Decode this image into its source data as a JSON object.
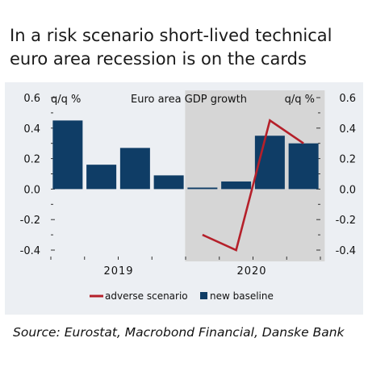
{
  "title": "In a risk scenario short-lived technical euro area recession is on the cards",
  "source": "Source: Eurostat, Macrobond Financial, Danske Bank",
  "colors": {
    "bar": "#0f3d66",
    "line": "#b5202a",
    "shade": "#d6d6d6",
    "panel": "#eceff3"
  },
  "chart_data": {
    "type": "bar",
    "title": "Euro area GDP growth",
    "ylabel_left": "q/q %",
    "ylabel_right": "q/q %",
    "ylim": [
      -0.45,
      0.6
    ],
    "yticks": [
      -0.4,
      -0.2,
      0.0,
      0.2,
      0.4,
      0.6
    ],
    "ytick_labels": [
      "-0.4",
      "-0.2",
      "0.0",
      "0.2",
      "0.4",
      "0.6"
    ],
    "x_groups": [
      "2019",
      "2020"
    ],
    "categories": [
      "2019 Q1",
      "2019 Q2",
      "2019 Q3",
      "2019 Q4",
      "2020 Q1",
      "2020 Q2",
      "2020 Q3",
      "2020 Q4"
    ],
    "series": [
      {
        "name": "new baseline",
        "type": "bar",
        "values": [
          0.45,
          0.16,
          0.27,
          0.09,
          0.01,
          0.05,
          0.35,
          0.3
        ]
      },
      {
        "name": "adverse scenario",
        "type": "line",
        "values": [
          null,
          null,
          null,
          null,
          -0.3,
          -0.4,
          0.45,
          0.3
        ]
      }
    ],
    "shaded_region": {
      "from": "2020 Q1",
      "to": "2020 Q4"
    },
    "legend_position": "bottom"
  }
}
